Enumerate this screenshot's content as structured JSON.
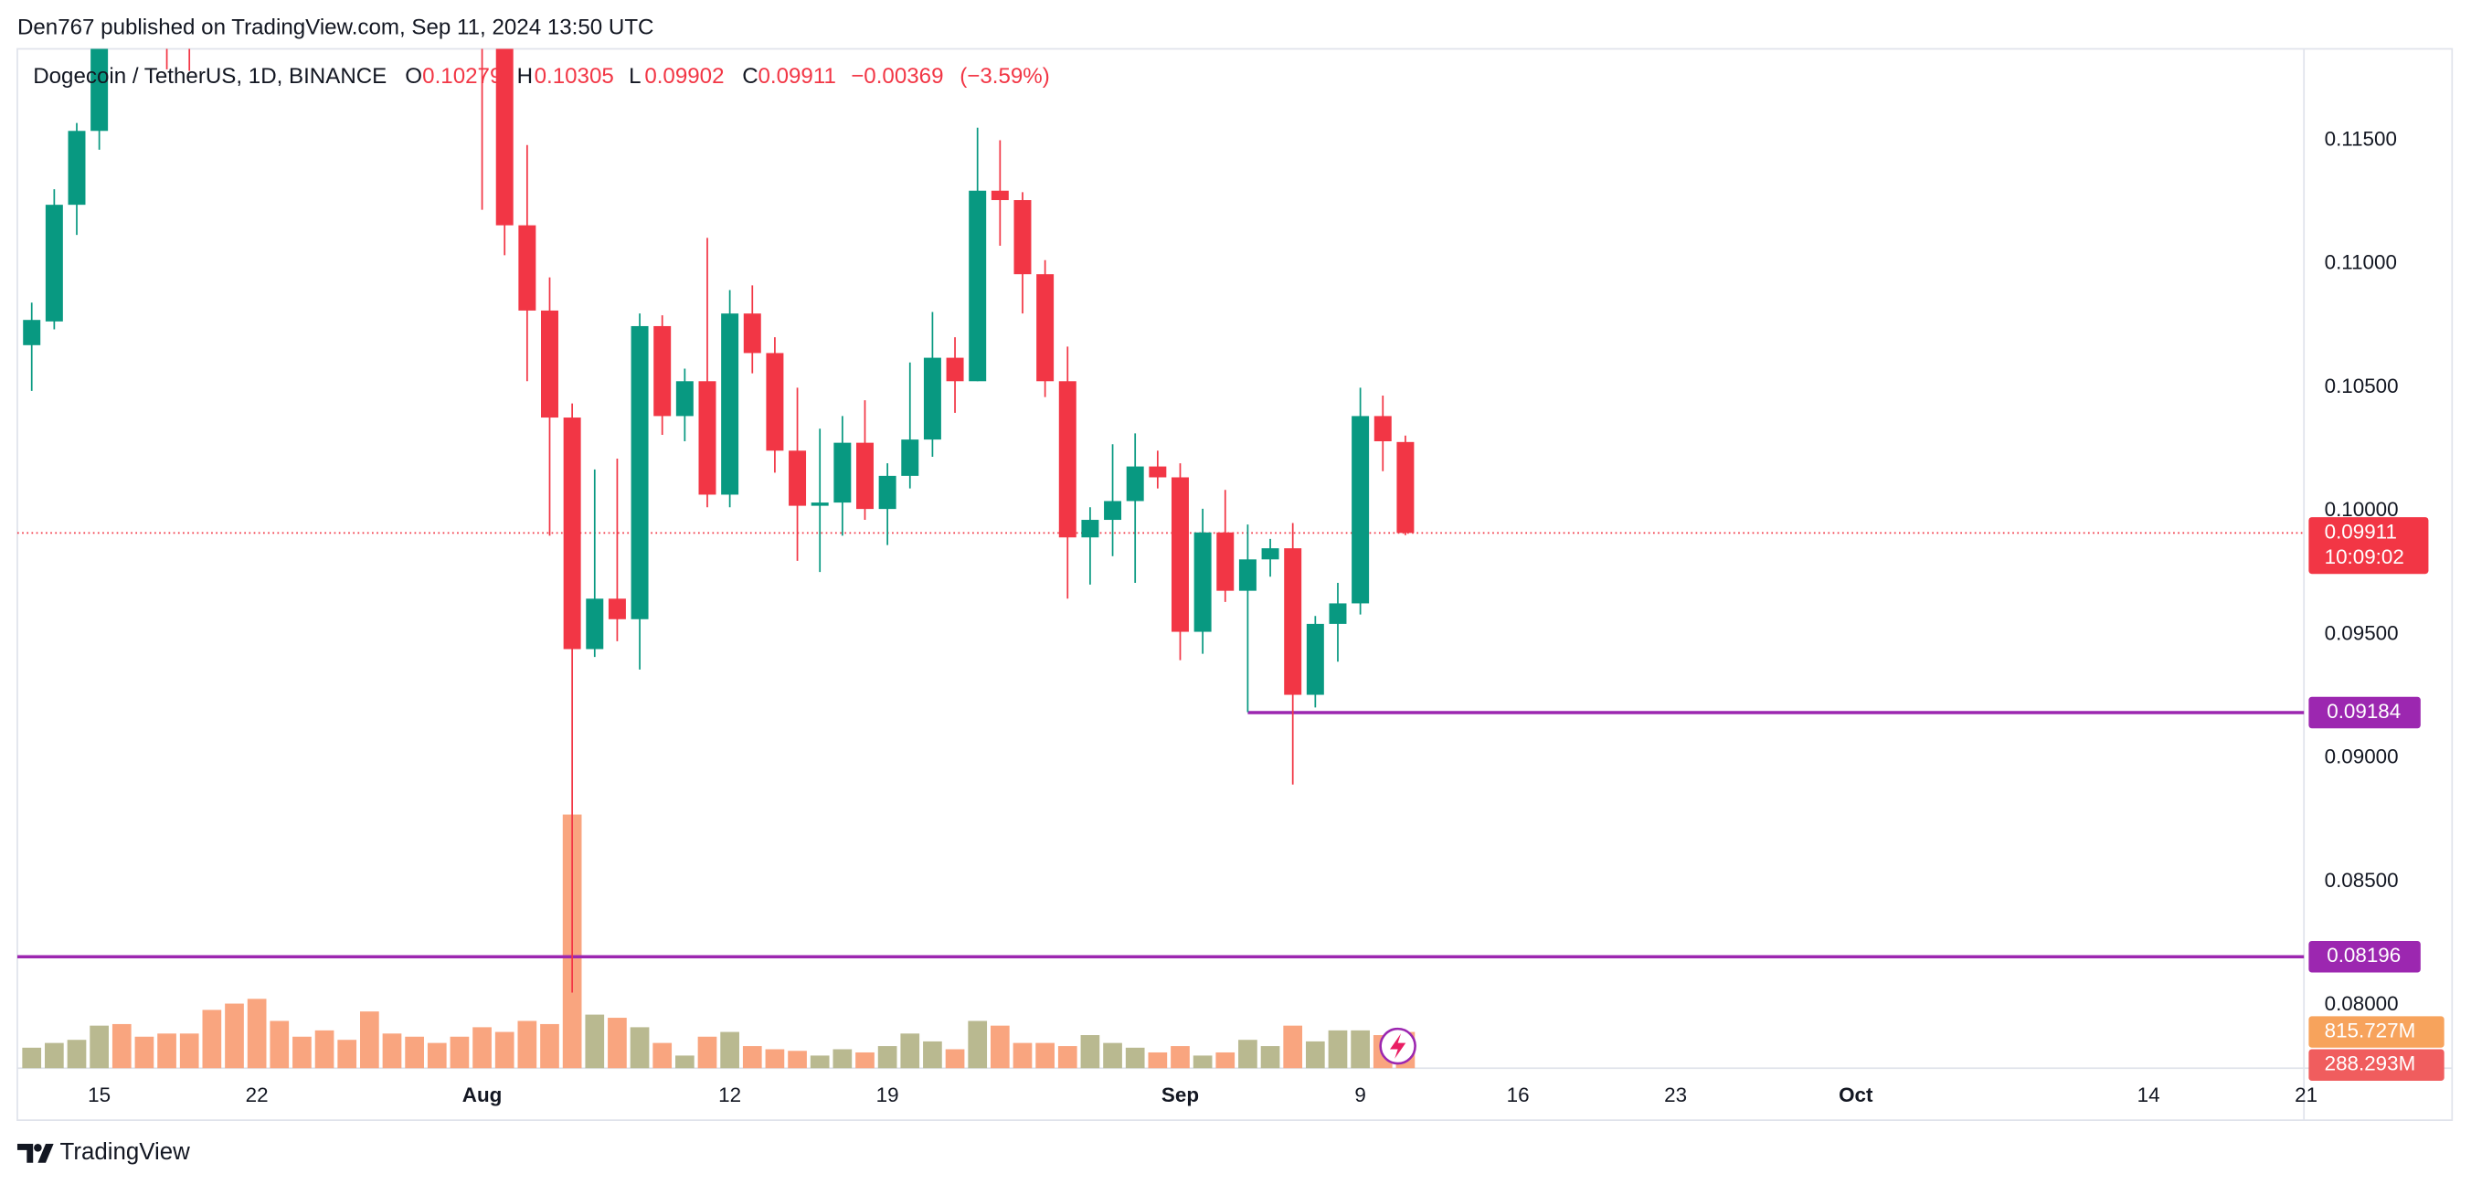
{
  "header": {
    "byline": "Den767 published on TradingView.com, Sep 11, 2024 13:50 UTC"
  },
  "chart_data": {
    "type": "candlestick",
    "symbol": "Dogecoin / TetherUS, 1D, BINANCE",
    "legend": [
      {
        "letter": "O",
        "value": 0.10279
      },
      {
        "letter": "H",
        "value": 0.10305
      },
      {
        "letter": "L",
        "value": 0.09902
      },
      {
        "letter": "C",
        "value": 0.09911
      }
    ],
    "change": {
      "value": -0.00369,
      "label": "−0.00369"
    },
    "change_percent": {
      "value": -3.59,
      "label": "(−3.59%)"
    },
    "x": [
      "2024-07-12",
      "2024-07-13",
      "2024-07-14",
      "2024-07-15",
      "2024-07-16",
      "2024-07-17",
      "2024-07-18",
      "2024-07-19",
      "2024-07-20",
      "2024-07-21",
      "2024-07-22",
      "2024-07-23",
      "2024-07-24",
      "2024-07-25",
      "2024-07-26",
      "2024-07-27",
      "2024-07-28",
      "2024-07-29",
      "2024-07-30",
      "2024-07-31",
      "2024-08-01",
      "2024-08-02",
      "2024-08-03",
      "2024-08-04",
      "2024-08-05",
      "2024-08-06",
      "2024-08-07",
      "2024-08-08",
      "2024-08-09",
      "2024-08-10",
      "2024-08-11",
      "2024-08-12",
      "2024-08-13",
      "2024-08-14",
      "2024-08-15",
      "2024-08-16",
      "2024-08-17",
      "2024-08-18",
      "2024-08-19",
      "2024-08-20",
      "2024-08-21",
      "2024-08-22",
      "2024-08-23",
      "2024-08-24",
      "2024-08-25",
      "2024-08-26",
      "2024-08-27",
      "2024-08-28",
      "2024-08-29",
      "2024-08-30",
      "2024-08-31",
      "2024-09-01",
      "2024-09-02",
      "2024-09-03",
      "2024-09-04",
      "2024-09-05",
      "2024-09-06",
      "2024-09-07",
      "2024-09-08",
      "2024-09-09",
      "2024-09-10",
      "2024-09-11"
    ],
    "open": [
      0.10671,
      0.10767,
      0.11239,
      0.11538,
      null,
      null,
      null,
      null,
      null,
      null,
      null,
      null,
      null,
      null,
      null,
      null,
      null,
      null,
      null,
      null,
      null,
      null,
      0.11156,
      0.10811,
      0.10378,
      0.09441,
      0.09645,
      0.09562,
      0.10748,
      0.10384,
      0.10525,
      0.10066,
      0.10799,
      0.10639,
      0.10244,
      0.10021,
      0.10034,
      0.10276,
      0.10008,
      0.10142,
      0.10289,
      0.1062,
      0.10525,
      0.11296,
      0.11258,
      0.10958,
      0.10525,
      0.09893,
      0.09964,
      0.1004,
      0.1018,
      0.10136,
      0.09511,
      0.09913,
      0.09677,
      0.09804,
      0.09849,
      0.09256,
      0.09543,
      0.09626,
      0.10384,
      0.10279
    ],
    "high": [
      0.10843,
      0.11302,
      0.1157,
      null,
      null,
      null,
      null,
      null,
      null,
      null,
      null,
      null,
      null,
      null,
      null,
      null,
      null,
      null,
      null,
      null,
      null,
      null,
      0.11481,
      0.10945,
      0.10435,
      0.10168,
      0.10212,
      0.10799,
      0.10792,
      0.10576,
      0.11105,
      0.10894,
      0.10913,
      0.10703,
      0.10499,
      0.10333,
      0.10384,
      0.10448,
      0.10193,
      0.10601,
      0.10805,
      0.10703,
      0.11551,
      0.115,
      0.1129,
      0.11015,
      0.10665,
      0.10015,
      0.1027,
      0.10314,
      0.10244,
      0.10193,
      0.10009,
      0.10085,
      0.09945,
      0.09887,
      0.09951,
      0.09575,
      0.09709,
      0.10499,
      0.10467,
      0.10305
    ],
    "low": [
      0.10486,
      0.10735,
      0.11117,
      0.11462,
      null,
      null,
      0.11787,
      0.11781,
      null,
      null,
      null,
      null,
      null,
      null,
      null,
      null,
      null,
      null,
      null,
      null,
      0.11219,
      0.11035,
      0.10525,
      0.099,
      0.08051,
      0.09409,
      0.09473,
      0.09358,
      0.10308,
      0.10282,
      0.10015,
      0.10015,
      0.10557,
      0.10155,
      0.09798,
      0.09753,
      0.099,
      0.09964,
      0.09862,
      0.10091,
      0.10219,
      0.10397,
      0.10525,
      0.11073,
      0.10799,
      0.10461,
      0.09645,
      0.09702,
      0.09817,
      0.09709,
      0.10091,
      0.09396,
      0.09422,
      0.09632,
      0.09186,
      0.09734,
      0.08893,
      0.09205,
      0.0939,
      0.09581,
      0.10161,
      0.09902
    ],
    "close": [
      0.10773,
      0.11239,
      0.11538,
      null,
      null,
      null,
      null,
      null,
      null,
      null,
      null,
      null,
      null,
      null,
      null,
      null,
      null,
      null,
      null,
      null,
      null,
      0.11156,
      0.10811,
      0.10378,
      0.09441,
      0.09645,
      0.09562,
      0.10748,
      0.10384,
      0.10525,
      0.10066,
      0.10799,
      0.10639,
      0.10244,
      0.10021,
      0.10034,
      0.10276,
      0.10008,
      0.10142,
      0.10289,
      0.1062,
      0.10525,
      0.11296,
      0.11258,
      0.10958,
      0.10525,
      0.09893,
      0.09964,
      0.1004,
      0.1018,
      0.10136,
      0.09511,
      0.09913,
      0.09677,
      0.09804,
      0.09849,
      0.09256,
      0.09543,
      0.09626,
      0.10384,
      0.10282,
      0.09911
    ],
    "volume": [
      461,
      568,
      638,
      958,
      993,
      709,
      780,
      780,
      1312,
      1454,
      1561,
      1064,
      709,
      851,
      638,
      1277,
      780,
      709,
      568,
      709,
      922,
      816,
      1064,
      993,
      5711,
      1206,
      1135,
      922,
      568,
      284,
      709,
      816,
      497,
      426,
      390,
      284,
      426,
      355,
      497,
      780,
      603,
      426,
      1064,
      958,
      568,
      568,
      497,
      745,
      568,
      461,
      355,
      497,
      284,
      355,
      638,
      497,
      958,
      603,
      851,
      851,
      745,
      815.727
    ],
    "volume_ylim": [
      0,
      22950
    ],
    "volume_labels": [
      {
        "value": 815.727,
        "label": "815.727M",
        "color": "#f7a35c"
      },
      {
        "value": 288.293,
        "label": "288.293M",
        "color": "#f05d5e"
      }
    ],
    "up_color": "#089981",
    "down_color": "#f23645",
    "volume_up_color": "#b9b990",
    "volume_down_color": "#f9a57f",
    "xlim": [
      "2024-07-11T08:40Z",
      "2024-10-20T21:40Z"
    ],
    "xticks": [
      {
        "value": "2024-07-15",
        "label": "15"
      },
      {
        "value": "2024-07-22",
        "label": "22"
      },
      {
        "value": "2024-08-01",
        "label": "Aug"
      },
      {
        "value": "2024-08-12",
        "label": "12"
      },
      {
        "value": "2024-08-19",
        "label": "19"
      },
      {
        "value": "2024-09-01",
        "label": "Sep"
      },
      {
        "value": "2024-09-09",
        "label": "9"
      },
      {
        "value": "2024-09-16",
        "label": "16"
      },
      {
        "value": "2024-09-23",
        "label": "23"
      },
      {
        "value": "2024-10-01",
        "label": "Oct"
      },
      {
        "value": "2024-10-14",
        "label": "14"
      },
      {
        "value": "2024-10-21",
        "label": "21"
      }
    ],
    "ylim": [
      0.07745,
      0.1187
    ],
    "yticks": [
      {
        "value": 0.115,
        "label": "0.11500"
      },
      {
        "value": 0.11,
        "label": "0.11000"
      },
      {
        "value": 0.105,
        "label": "0.10500"
      },
      {
        "value": 0.1,
        "label": "0.10000"
      },
      {
        "value": 0.095,
        "label": "0.09500"
      },
      {
        "value": 0.09,
        "label": "0.09000"
      },
      {
        "value": 0.085,
        "label": "0.08500"
      },
      {
        "value": 0.08,
        "label": "0.08000"
      }
    ],
    "grid": true,
    "lines": [
      {
        "value": 0.09184,
        "start": "2024-09-04",
        "color": "#9c27b0"
      },
      {
        "value": 0.08196,
        "color": "#9c27b0"
      }
    ],
    "last_price": 0.09911,
    "countdown": "10:09:02"
  },
  "footer": {
    "brand": "TradingView"
  }
}
